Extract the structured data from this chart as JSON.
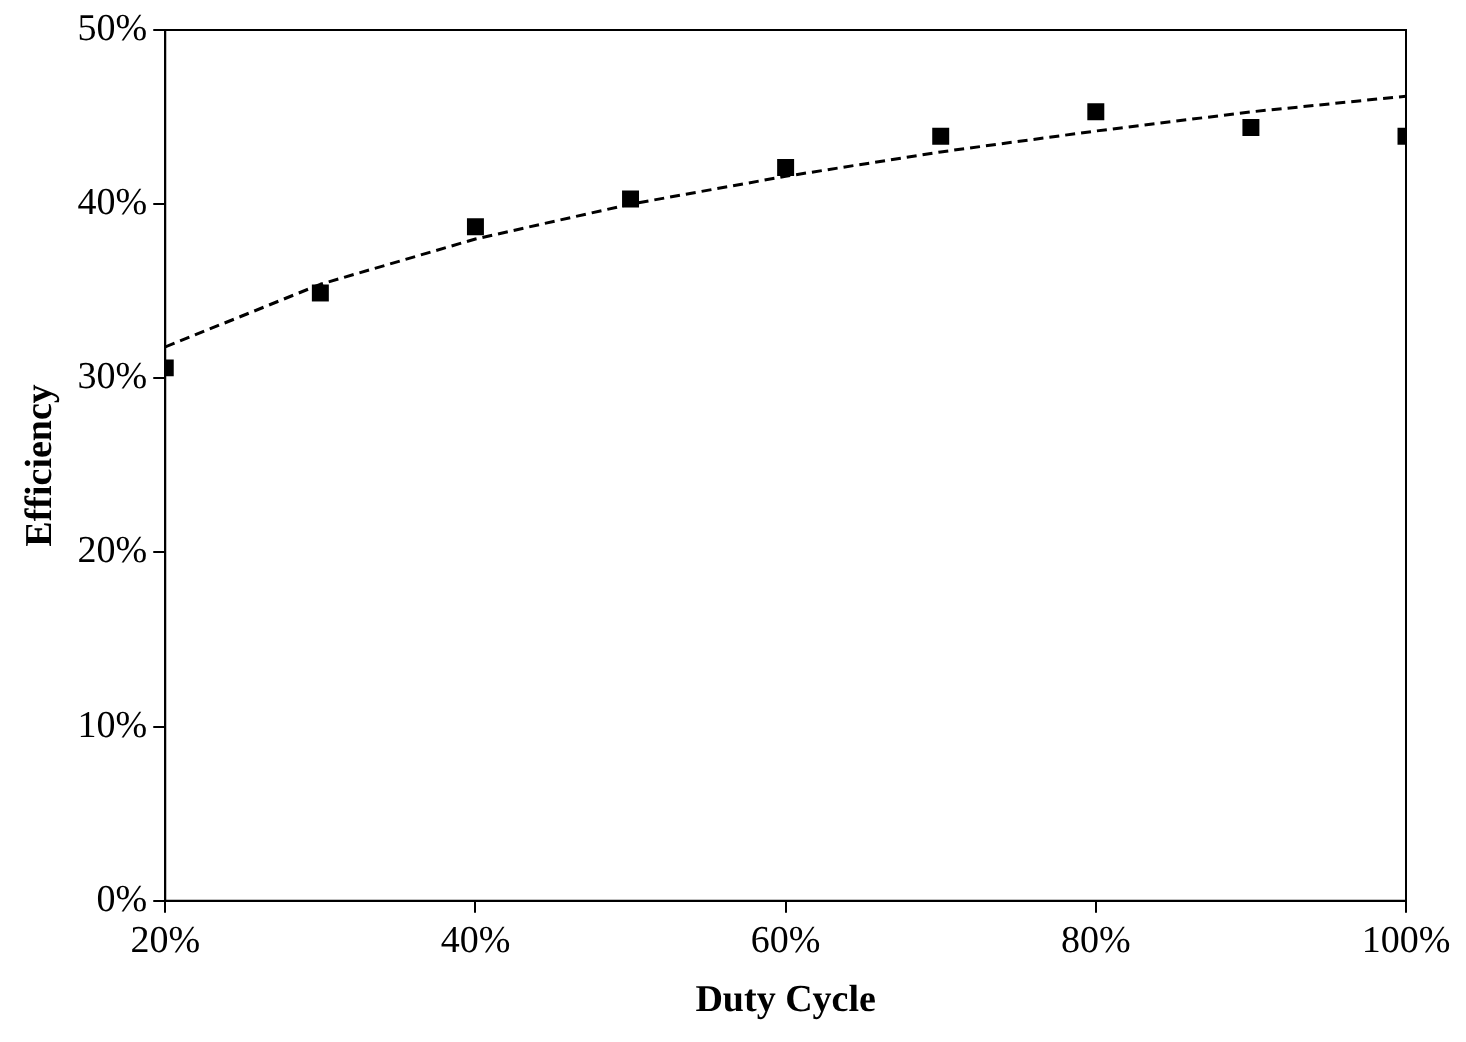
{
  "chart_data": {
    "type": "scatter",
    "xlabel": "Duty Cycle",
    "ylabel": "Efficiency",
    "marker": "square",
    "grid": false,
    "legend": false,
    "xlim": [
      20,
      100
    ],
    "xticks": [
      {
        "value": 20,
        "label": "20%"
      },
      {
        "value": 40,
        "label": "40%"
      },
      {
        "value": 60,
        "label": "60%"
      },
      {
        "value": 80,
        "label": "80%"
      },
      {
        "value": 100,
        "label": "100%"
      }
    ],
    "ylim": [
      0,
      50
    ],
    "yticks": [
      {
        "value": 0,
        "label": "0%"
      },
      {
        "value": 10,
        "label": "10%"
      },
      {
        "value": 20,
        "label": "20%"
      },
      {
        "value": 30,
        "label": "30%"
      },
      {
        "value": 40,
        "label": "40%"
      },
      {
        "value": 50,
        "label": "50%"
      }
    ],
    "series": [
      {
        "type": "scatter",
        "color": "#000000",
        "x": [
          20,
          30,
          40,
          50,
          60,
          70,
          80,
          90,
          100
        ],
        "values": [
          30.6,
          34.9,
          38.7,
          40.3,
          42.1,
          43.9,
          45.3,
          44.4,
          43.9
        ]
      },
      {
        "type": "line",
        "color": "#000000",
        "line_style": "dashed",
        "marker": "none",
        "x": [
          20,
          30,
          40,
          50,
          60,
          70,
          80,
          90,
          100
        ],
        "values": [
          31.8,
          35.4,
          38.0,
          40.0,
          41.6,
          43.0,
          44.2,
          45.3,
          46.2
        ]
      }
    ]
  }
}
